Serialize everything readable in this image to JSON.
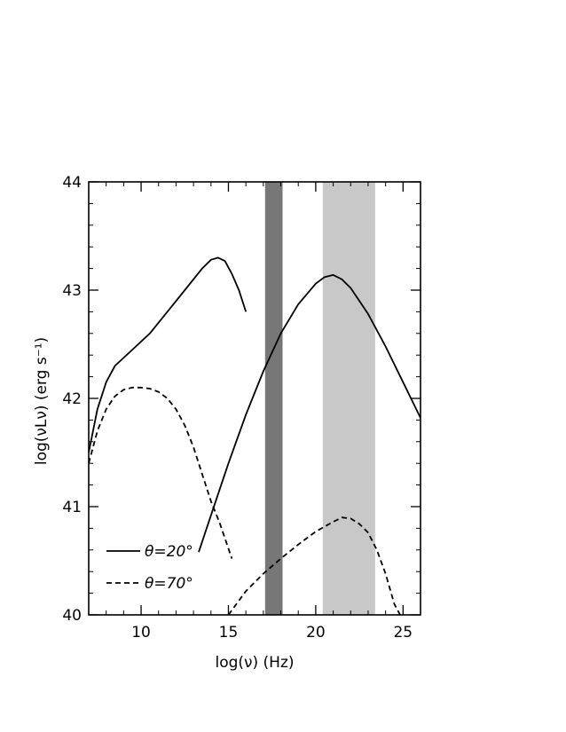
{
  "chart_data": {
    "type": "line",
    "xlabel": "log(ν) (Hz)",
    "ylabel": "log(νLν) (erg s⁻¹)",
    "xlim": [
      7,
      26
    ],
    "ylim": [
      40,
      44
    ],
    "xticks": [
      10,
      15,
      20,
      25
    ],
    "yticks": [
      40,
      41,
      42,
      43,
      44
    ],
    "bands": [
      {
        "x_range": [
          17.1,
          18.1
        ],
        "color": "#777777"
      },
      {
        "x_range": [
          20.4,
          23.4
        ],
        "color": "#c8c8c8"
      }
    ],
    "series": [
      {
        "name": "θ=20°",
        "style": "solid",
        "segments": [
          {
            "x": [
              7.0,
              7.5,
              8.0,
              8.5,
              9.5,
              10.5,
              11.5,
              12.5,
              13.5,
              14.0,
              14.4,
              14.8,
              15.2,
              15.6,
              16.0
            ],
            "y": [
              41.5,
              41.9,
              42.15,
              42.3,
              42.45,
              42.6,
              42.8,
              43.0,
              43.2,
              43.28,
              43.3,
              43.27,
              43.15,
              43.0,
              42.8
            ]
          },
          {
            "x": [
              13.3,
              14.0,
              15.0,
              16.0,
              17.0,
              18.0,
              19.0,
              20.0,
              20.5,
              21.0,
              21.5,
              22.0,
              23.0,
              24.0,
              25.0,
              26.0
            ],
            "y": [
              40.58,
              40.92,
              41.4,
              41.85,
              42.25,
              42.6,
              42.87,
              43.06,
              43.12,
              43.14,
              43.1,
              43.02,
              42.78,
              42.48,
              42.15,
              41.82
            ]
          }
        ]
      },
      {
        "name": "θ=70°",
        "style": "dashed",
        "segments": [
          {
            "x": [
              7.0,
              7.5,
              8.0,
              8.5,
              9.0,
              9.5,
              10.0,
              10.5,
              11.0,
              11.5,
              12.0,
              12.5,
              13.0,
              13.5,
              14.0,
              14.5,
              15.2
            ],
            "y": [
              41.4,
              41.7,
              41.9,
              42.02,
              42.08,
              42.1,
              42.1,
              42.09,
              42.06,
              42.0,
              41.9,
              41.75,
              41.55,
              41.3,
              41.05,
              40.85,
              40.52
            ]
          },
          {
            "x": [
              15.0,
              16.0,
              17.0,
              18.0,
              19.0,
              20.0,
              21.0,
              21.5,
              22.0,
              22.5,
              23.0,
              23.5,
              24.0,
              24.5,
              25.0
            ],
            "y": [
              40.0,
              40.22,
              40.38,
              40.52,
              40.65,
              40.77,
              40.86,
              40.9,
              40.89,
              40.84,
              40.76,
              40.6,
              40.38,
              40.1,
              39.95
            ]
          }
        ]
      }
    ],
    "legend": {
      "placement": "bottom-left"
    }
  }
}
